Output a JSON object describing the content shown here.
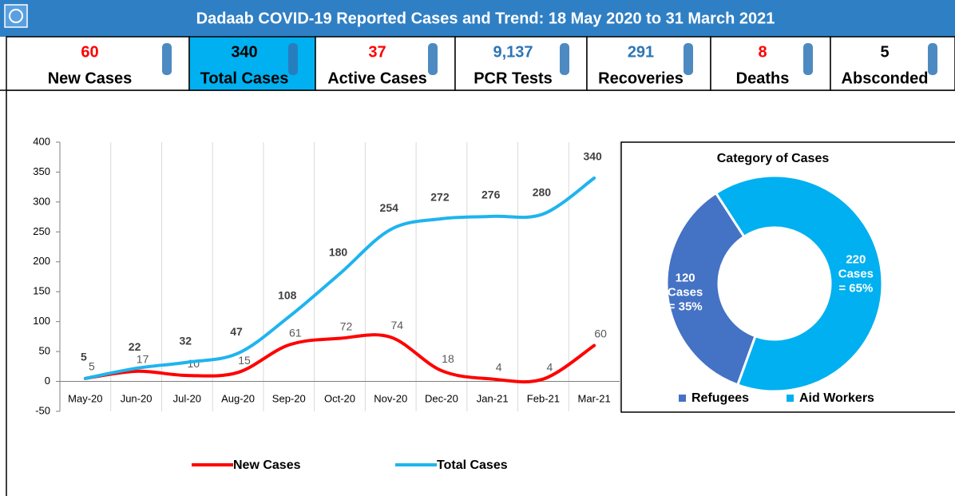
{
  "header": {
    "title": "Dadaab COVID-19 Reported Cases and Trend: 18 May 2020 to 31 March 2021"
  },
  "stats": [
    {
      "value": "60",
      "label": "New Cases",
      "color": "#ff0000",
      "background": "#ffffff"
    },
    {
      "value": "340",
      "label": "Total Cases",
      "color": "#000000",
      "background": "#00b0f0"
    },
    {
      "value": "37",
      "label": "Active Cases",
      "color": "#ff0000",
      "background": "#ffffff"
    },
    {
      "value": "9,137",
      "label": "PCR Tests",
      "color": "#2e75b6",
      "background": "#ffffff"
    },
    {
      "value": "291",
      "label": "Recoveries",
      "color": "#2e75b6",
      "background": "#ffffff"
    },
    {
      "value": "8",
      "label": "Deaths",
      "color": "#ff0000",
      "background": "#ffffff"
    },
    {
      "value": "5",
      "label": "Absconded",
      "color": "#000000",
      "background": "#ffffff"
    }
  ],
  "chart_data": [
    {
      "type": "line",
      "categories": [
        "May-20",
        "Jun-20",
        "Jul-20",
        "Aug-20",
        "Sep-20",
        "Oct-20",
        "Nov-20",
        "Dec-20",
        "Jan-21",
        "Feb-21",
        "Mar-21"
      ],
      "series": [
        {
          "name": "New Cases",
          "color": "#ff0000",
          "values": [
            5,
            17,
            10,
            15,
            61,
            72,
            74,
            18,
            4,
            4,
            60
          ]
        },
        {
          "name": "Total Cases",
          "color": "#1fb4ee",
          "values": [
            5,
            22,
            32,
            47,
            108,
            180,
            254,
            272,
            276,
            280,
            340
          ]
        }
      ],
      "ylim": [
        -50,
        400
      ],
      "yticks": [
        -50,
        0,
        50,
        100,
        150,
        200,
        250,
        300,
        350,
        400
      ],
      "grid": true,
      "legend": "bottom"
    },
    {
      "type": "pie",
      "title": "Category of Cases",
      "categories": [
        "Refugees",
        "Aid Workers"
      ],
      "values": [
        120,
        220
      ],
      "value_labels": [
        [
          "120",
          "Cases",
          "= 35%"
        ],
        [
          "220",
          "Cases",
          "= 65%"
        ]
      ],
      "colors": [
        "#4472c4",
        "#00b0f0"
      ],
      "legend": "bottom"
    }
  ]
}
